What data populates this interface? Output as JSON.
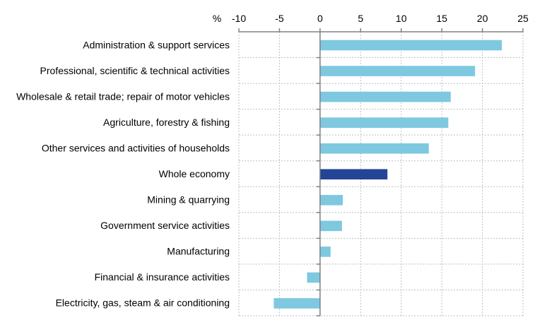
{
  "chart_data": {
    "type": "bar",
    "orientation": "horizontal",
    "title": "",
    "xlabel": "",
    "ylabel": "",
    "unit_label": "%",
    "xlim": [
      -10,
      25
    ],
    "xticks": [
      -10,
      -5,
      0,
      5,
      10,
      15,
      20,
      25
    ],
    "grid": true,
    "categories": [
      "Administration & support services",
      "Professional, scientific & technical activities",
      "Wholesale & retail trade; repair of motor vehicles",
      "Agriculture, forestry & fishing",
      "Other services and activities of households",
      "Whole economy",
      "Mining & quarrying",
      "Government service activities",
      "Manufacturing",
      "Financial & insurance activities",
      "Electricity, gas, steam & air conditioning"
    ],
    "values": [
      22.4,
      19.1,
      16.1,
      15.8,
      13.4,
      8.3,
      2.8,
      2.7,
      1.3,
      -1.6,
      -5.7
    ],
    "highlight": "Whole economy",
    "colors": {
      "bar": "#7ec8e0",
      "highlight": "#244495",
      "grid": "#bfbfbf",
      "axis": "#808080"
    }
  }
}
